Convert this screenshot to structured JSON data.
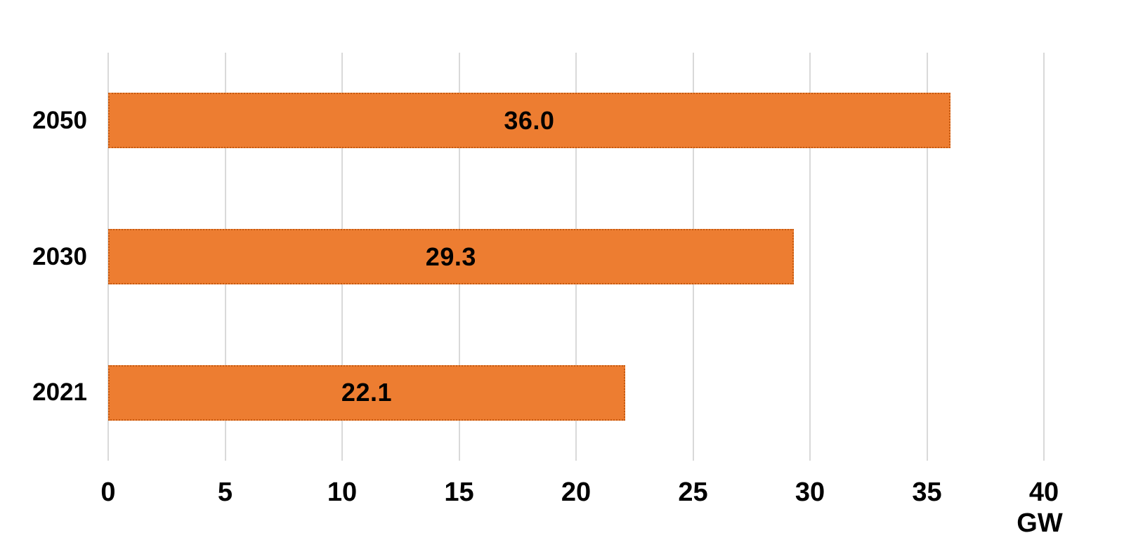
{
  "chart_data": {
    "type": "bar",
    "orientation": "horizontal",
    "title": "",
    "categories": [
      "2050",
      "2030",
      "2021"
    ],
    "values": [
      36.0,
      29.3,
      22.1
    ],
    "value_labels": [
      "36.0",
      "29.3",
      "22.1"
    ],
    "xlabel": "GW",
    "ylabel": "",
    "xlim": [
      0,
      40
    ],
    "xticks": [
      0,
      5,
      10,
      15,
      20,
      25,
      30,
      35,
      40
    ],
    "grid": true,
    "legend": false,
    "colors": {
      "bar_fill": "#ED7D31",
      "bar_border": "#C55A11",
      "gridline": "#D9D9D9",
      "text": "#000000",
      "background": "#FFFFFF"
    }
  }
}
